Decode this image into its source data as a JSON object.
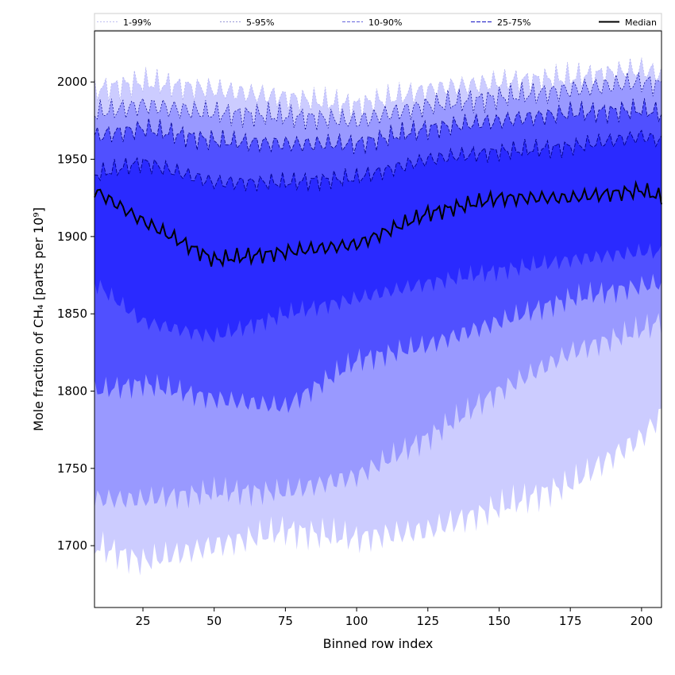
{
  "chart_data": {
    "type": "area",
    "xlabel": "Binned row index",
    "ylabel": "Mole fraction of CH₄ [parts per 10⁹]",
    "xlim": [
      8,
      207
    ],
    "ylim": [
      1660,
      2033
    ],
    "xticks": [
      25,
      50,
      75,
      100,
      125,
      150,
      175,
      200
    ],
    "yticks": [
      1700,
      1750,
      1800,
      1850,
      1900,
      1950,
      2000
    ],
    "grid": false,
    "legend": {
      "placement": "top",
      "entries": [
        "1-99%",
        "5-95%",
        "10-90%",
        "25-75%",
        "Median"
      ]
    },
    "colors": {
      "band_1_99": "#ccccff",
      "band_5_95": "#9999ff",
      "band_10_90": "#5050ff",
      "band_25_75": "#2a2aff",
      "line_light": "#aaaaee",
      "line_dark": "#00008b",
      "median": "#000000"
    },
    "x_anchors": [
      8,
      25,
      50,
      75,
      100,
      125,
      150,
      175,
      200,
      207
    ],
    "series": [
      {
        "name": "Median",
        "values": [
          1930,
          1910,
          1885,
          1890,
          1895,
          1915,
          1925,
          1925,
          1930,
          1925
        ]
      },
      {
        "name": "25-75% upper",
        "values": [
          1940,
          1948,
          1935,
          1935,
          1938,
          1950,
          1955,
          1958,
          1965,
          1962
        ]
      },
      {
        "name": "25-75% lower",
        "values": [
          1870,
          1845,
          1835,
          1850,
          1860,
          1870,
          1878,
          1885,
          1890,
          1890
        ]
      },
      {
        "name": "10-90% upper",
        "values": [
          1965,
          1970,
          1962,
          1960,
          1960,
          1970,
          1975,
          1980,
          1982,
          1980
        ]
      },
      {
        "name": "10-90% lower",
        "values": [
          1800,
          1805,
          1795,
          1790,
          1820,
          1830,
          1845,
          1860,
          1868,
          1870
        ]
      },
      {
        "name": "5-95% upper",
        "values": [
          1980,
          1985,
          1980,
          1978,
          1975,
          1985,
          1990,
          1995,
          2000,
          1998
        ]
      },
      {
        "name": "5-95% lower",
        "values": [
          1730,
          1730,
          1735,
          1735,
          1745,
          1770,
          1800,
          1825,
          1840,
          1845
        ]
      },
      {
        "name": "1-99% upper",
        "values": [
          1995,
          2000,
          1995,
          1990,
          1985,
          1995,
          2000,
          2003,
          2008,
          2005
        ]
      },
      {
        "name": "1-99% lower",
        "values": [
          1700,
          1690,
          1700,
          1710,
          1705,
          1710,
          1725,
          1740,
          1770,
          1785
        ]
      }
    ]
  }
}
